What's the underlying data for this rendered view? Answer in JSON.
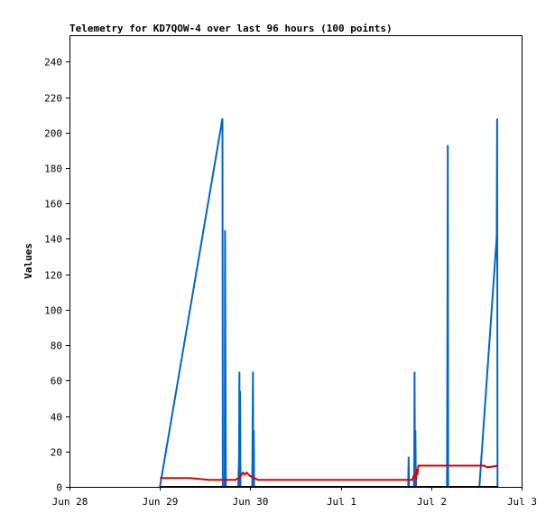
{
  "chart_data": {
    "type": "line",
    "title": "Telemetry for KD7QOW-4 over last 96 hours (100 points)",
    "xlabel": "",
    "ylabel": "Values",
    "x_unit": "hours since Jun 28 00:00",
    "xlim": [
      0,
      120
    ],
    "ylim": [
      0,
      255
    ],
    "x_ticks": [
      {
        "value": 0,
        "label": "Jun 28"
      },
      {
        "value": 24,
        "label": "Jun 29"
      },
      {
        "value": 48,
        "label": "Jun 30"
      },
      {
        "value": 72,
        "label": "Jul 1"
      },
      {
        "value": 96,
        "label": "Jul 2"
      },
      {
        "value": 120,
        "label": "Jul 3"
      }
    ],
    "y_ticks": [
      0,
      20,
      40,
      60,
      80,
      100,
      120,
      140,
      160,
      180,
      200,
      220,
      240
    ],
    "grid": false,
    "legend": "none",
    "series": [
      {
        "color": "#0066cc",
        "x": [
          24.0,
          40.6,
          40.7,
          41.2,
          41.3,
          41.5,
          44.8,
          45.0,
          45.1,
          45.2,
          45.3,
          45.4,
          45.5,
          48.5,
          48.6,
          48.7,
          48.8,
          48.9,
          49.0,
          89.9,
          90.0,
          90.1,
          91.4,
          91.5,
          91.6,
          91.7,
          91.8,
          91.9,
          92.0,
          100.2,
          100.3,
          100.4,
          100.5,
          108.8,
          113.4,
          113.5,
          113.6,
          113.7
        ],
        "y": [
          0,
          208,
          0,
          0,
          145,
          0,
          0,
          17,
          65,
          0,
          54,
          0,
          0,
          0,
          32,
          65,
          0,
          32,
          0,
          0,
          17,
          0,
          0,
          10,
          65,
          0,
          32,
          10,
          0,
          0,
          89,
          193,
          0,
          0,
          141,
          208,
          0,
          0
        ]
      },
      {
        "color": "#dd0000",
        "x": [
          24.0,
          27.0,
          32.0,
          37.0,
          42.0,
          44.0,
          45.0,
          46.0,
          46.5,
          47.0,
          48.0,
          50.0,
          56.0,
          70.0,
          86.0,
          91.0,
          91.5,
          92.0,
          92.2,
          92.4,
          92.6,
          94.0,
          100.0,
          106.0,
          110.0,
          111.0,
          113.7
        ],
        "y": [
          5,
          5,
          5,
          4,
          4,
          4,
          5,
          8,
          7,
          8,
          6,
          4,
          4,
          4,
          4,
          4,
          7,
          5,
          9,
          8,
          12,
          12,
          12,
          12,
          12,
          11,
          12
        ]
      },
      {
        "color": "#000000",
        "x": [
          24.0,
          113.7
        ],
        "y": [
          0,
          0
        ]
      }
    ]
  }
}
